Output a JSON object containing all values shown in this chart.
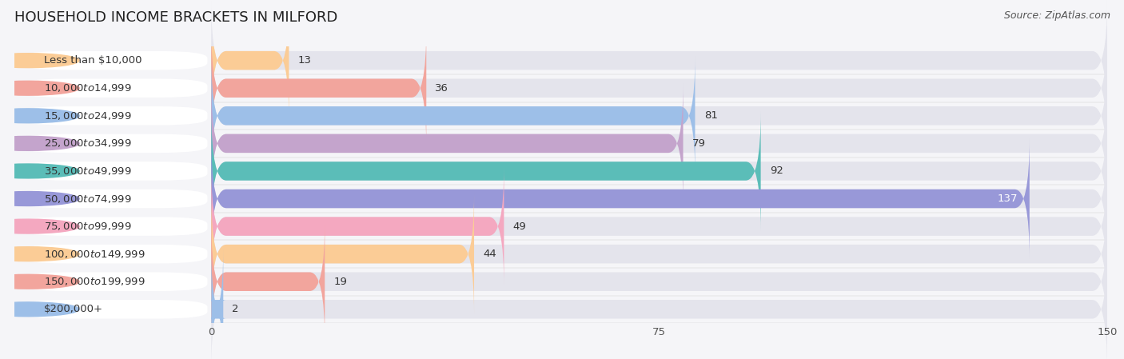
{
  "title": "HOUSEHOLD INCOME BRACKETS IN MILFORD",
  "source": "Source: ZipAtlas.com",
  "categories": [
    "Less than $10,000",
    "$10,000 to $14,999",
    "$15,000 to $24,999",
    "$25,000 to $34,999",
    "$35,000 to $49,999",
    "$50,000 to $74,999",
    "$75,000 to $99,999",
    "$100,000 to $149,999",
    "$150,000 to $199,999",
    "$200,000+"
  ],
  "values": [
    13,
    36,
    81,
    79,
    92,
    137,
    49,
    44,
    19,
    2
  ],
  "bar_colors": [
    "#FBCC96",
    "#F2A59D",
    "#9DBFE8",
    "#C4A4CC",
    "#5BBDB8",
    "#9898D8",
    "#F4A8C0",
    "#FBCC96",
    "#F2A59D",
    "#9DBFE8"
  ],
  "xlim_data": [
    0,
    150
  ],
  "xticks": [
    0,
    75,
    150
  ],
  "title_fontsize": 13,
  "label_fontsize": 9.5,
  "value_fontsize": 9.5,
  "source_fontsize": 9
}
